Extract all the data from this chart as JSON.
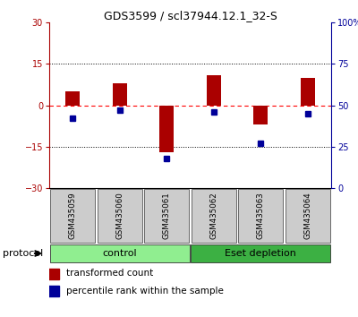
{
  "title": "GDS3599 / scl37944.12.1_32-S",
  "samples": [
    "GSM435059",
    "GSM435060",
    "GSM435061",
    "GSM435062",
    "GSM435063",
    "GSM435064"
  ],
  "red_values": [
    5,
    8,
    -17,
    11,
    -7,
    10
  ],
  "blue_values": [
    42,
    47,
    18,
    46,
    27,
    45
  ],
  "groups": [
    {
      "label": "control",
      "samples": [
        0,
        1,
        2
      ],
      "color": "#90ee90"
    },
    {
      "label": "Eset depletion",
      "samples": [
        3,
        4,
        5
      ],
      "color": "#3cb043"
    }
  ],
  "ylim_left": [
    -30,
    30
  ],
  "ylim_right": [
    0,
    100
  ],
  "yticks_left": [
    -30,
    -15,
    0,
    15,
    30
  ],
  "yticks_right": [
    0,
    25,
    50,
    75,
    100
  ],
  "ytick_labels_right": [
    "0",
    "25",
    "50",
    "75",
    "100%"
  ],
  "dotted_lines": [
    -15,
    15
  ],
  "red_color": "#aa0000",
  "blue_color": "#000099",
  "bg_color": "#ffffff",
  "legend_red": "transformed count",
  "legend_blue": "percentile rank within the sample",
  "protocol_label": "protocol",
  "sample_box_color": "#cccccc",
  "control_color": "#b3f0b3",
  "depletion_color": "#33cc33"
}
